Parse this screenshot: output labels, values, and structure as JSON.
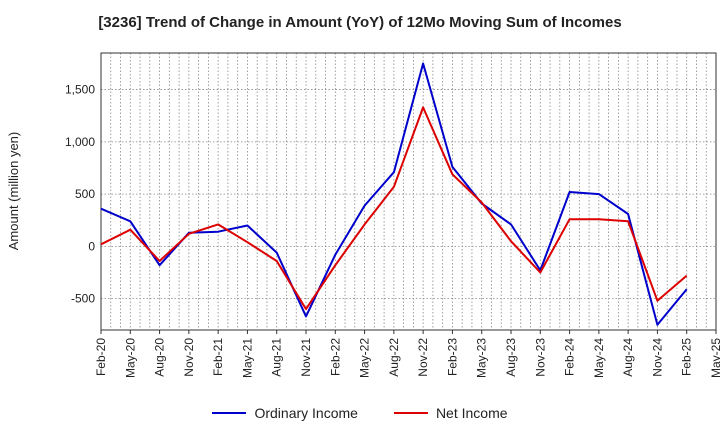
{
  "chart_data": {
    "type": "line",
    "title": "[3236]  Trend of Change in Amount (YoY) of 12Mo Moving Sum of Incomes",
    "ylabel": "Amount (million yen)",
    "xlabel": "",
    "ylim": [
      -800,
      1850
    ],
    "yticks": [
      -500,
      0,
      500,
      1000,
      1500
    ],
    "ytick_labels": [
      "-500",
      "0",
      "500",
      "1,000",
      "1,500"
    ],
    "x": [
      "Feb-20",
      "Mar-20",
      "Apr-20",
      "May-20",
      "Jun-20",
      "Jul-20",
      "Aug-20",
      "Sep-20",
      "Oct-20",
      "Nov-20",
      "Dec-20",
      "Jan-21",
      "Feb-21",
      "Mar-21",
      "Apr-21",
      "May-21",
      "Jun-21",
      "Jul-21",
      "Aug-21",
      "Sep-21",
      "Oct-21",
      "Nov-21",
      "Dec-21",
      "Jan-22",
      "Feb-22",
      "Mar-22",
      "Apr-22",
      "May-22",
      "Jun-22",
      "Jul-22",
      "Aug-22",
      "Sep-22",
      "Oct-22",
      "Nov-22",
      "Dec-22",
      "Jan-23",
      "Feb-23",
      "Mar-23",
      "Apr-23",
      "May-23",
      "Jun-23",
      "Jul-23",
      "Aug-23",
      "Sep-23",
      "Oct-23",
      "Nov-23",
      "Dec-23",
      "Jan-24",
      "Feb-24",
      "Mar-24",
      "Apr-24",
      "May-24",
      "Jun-24",
      "Jul-24",
      "Aug-24",
      "Sep-24",
      "Oct-24",
      "Nov-24",
      "Dec-24",
      "Jan-25",
      "Feb-25",
      "Mar-25",
      "Apr-25",
      "May-25"
    ],
    "x_tick_labels": [
      "Feb-20",
      "May-20",
      "Aug-20",
      "Nov-20",
      "Feb-21",
      "May-21",
      "Aug-21",
      "Nov-21",
      "Feb-22",
      "May-22",
      "Aug-22",
      "Nov-22",
      "Feb-23",
      "May-23",
      "Aug-23",
      "Nov-23",
      "Feb-24",
      "May-24",
      "Aug-24",
      "Nov-24",
      "Feb-25",
      "May-25"
    ],
    "grid": true,
    "legend_position": "bottom",
    "series": [
      {
        "name": "Ordinary Income",
        "color": "#0000cc",
        "points": [
          [
            "Feb-20",
            360
          ],
          [
            "May-20",
            240
          ],
          [
            "Aug-20",
            -180
          ],
          [
            "Nov-20",
            130
          ],
          [
            "Feb-21",
            140
          ],
          [
            "May-21",
            200
          ],
          [
            "Aug-21",
            -60
          ],
          [
            "Nov-21",
            -670
          ],
          [
            "Feb-22",
            -80
          ],
          [
            "May-22",
            390
          ],
          [
            "Aug-22",
            710
          ],
          [
            "Nov-22",
            1750
          ],
          [
            "Feb-23",
            760
          ],
          [
            "May-23",
            410
          ],
          [
            "Aug-23",
            210
          ],
          [
            "Nov-23",
            -230
          ],
          [
            "Feb-24",
            520
          ],
          [
            "May-24",
            500
          ],
          [
            "Aug-24",
            310
          ],
          [
            "Nov-24",
            -750
          ],
          [
            "Feb-25",
            -410
          ]
        ]
      },
      {
        "name": "Net Income",
        "color": "#dd0000",
        "points": [
          [
            "Feb-20",
            20
          ],
          [
            "May-20",
            160
          ],
          [
            "Aug-20",
            -140
          ],
          [
            "Nov-20",
            120
          ],
          [
            "Feb-21",
            210
          ],
          [
            "May-21",
            40
          ],
          [
            "Aug-21",
            -140
          ],
          [
            "Nov-21",
            -600
          ],
          [
            "Feb-22",
            -180
          ],
          [
            "May-22",
            210
          ],
          [
            "Aug-22",
            570
          ],
          [
            "Nov-22",
            1330
          ],
          [
            "Feb-23",
            690
          ],
          [
            "May-23",
            420
          ],
          [
            "Aug-23",
            50
          ],
          [
            "Nov-23",
            -250
          ],
          [
            "Feb-24",
            260
          ],
          [
            "May-24",
            260
          ],
          [
            "Aug-24",
            240
          ],
          [
            "Nov-24",
            -520
          ],
          [
            "Feb-25",
            -280
          ]
        ]
      }
    ]
  }
}
